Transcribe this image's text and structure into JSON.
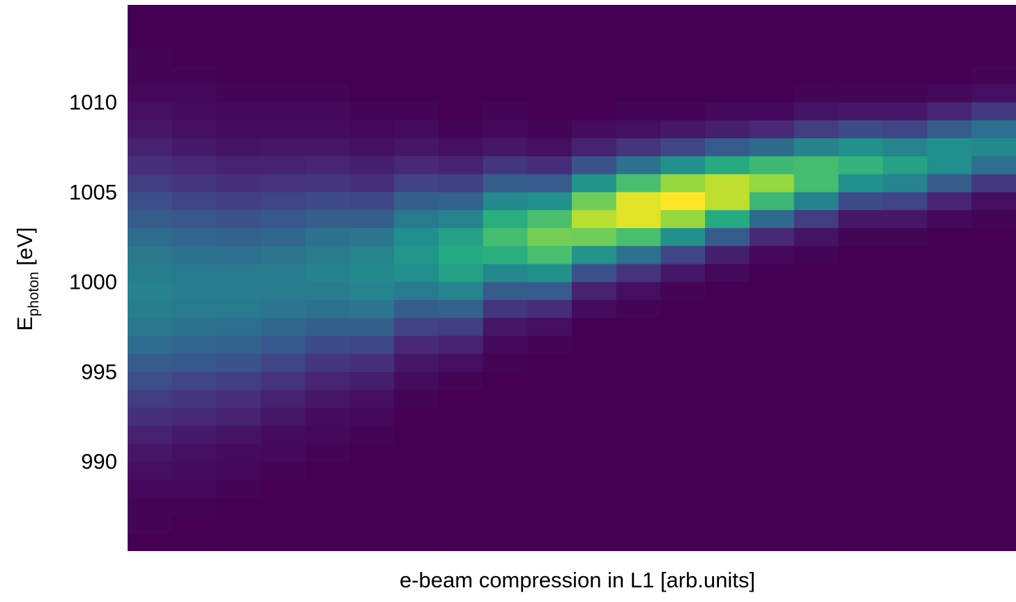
{
  "chart_data": {
    "type": "heatmap",
    "xlabel": "e-beam compression in L1 [arb.units]",
    "ylabel": "E",
    "ylabel_subscript": "photon",
    "ylabel_unit": "[eV]",
    "colormap": "viridis",
    "ylim": [
      985,
      1015.4
    ],
    "yticks": [
      990,
      995,
      1000,
      1005,
      1010
    ],
    "ybins": [
      985,
      986,
      987,
      988,
      989,
      990,
      991,
      992,
      993,
      994,
      995,
      996,
      997,
      998,
      999,
      1000,
      1001,
      1002,
      1003,
      1004,
      1005,
      1006,
      1007,
      1008,
      1009,
      1010,
      1011,
      1012,
      1013,
      1014,
      1015
    ],
    "values": [
      [
        5,
        6,
        6,
        7,
        9,
        11,
        14,
        18,
        22,
        28,
        33,
        39,
        43,
        46,
        47,
        46,
        43,
        39,
        33,
        28,
        22,
        18,
        14,
        11,
        9,
        7,
        6,
        6,
        5,
        5
      ],
      [
        5,
        5,
        6,
        7,
        8,
        9,
        12,
        16,
        20,
        25,
        31,
        36,
        41,
        44,
        45,
        44,
        41,
        36,
        31,
        25,
        20,
        16,
        12,
        9,
        8,
        7,
        6,
        5,
        5,
        5
      ],
      [
        5,
        5,
        5,
        6,
        7,
        8,
        10,
        14,
        18,
        23,
        29,
        35,
        40,
        44,
        45,
        44,
        40,
        35,
        29,
        23,
        18,
        14,
        10,
        8,
        7,
        6,
        5,
        5,
        5,
        5
      ],
      [
        5,
        5,
        5,
        5,
        6,
        7,
        8,
        11,
        14,
        19,
        25,
        31,
        37,
        42,
        45,
        45,
        42,
        37,
        31,
        25,
        19,
        14,
        11,
        8,
        7,
        6,
        5,
        5,
        5,
        5
      ],
      [
        5,
        5,
        5,
        5,
        5,
        6,
        7,
        8,
        11,
        15,
        20,
        27,
        34,
        41,
        45,
        47,
        45,
        41,
        34,
        27,
        20,
        15,
        11,
        8,
        7,
        6,
        5,
        5,
        5,
        5
      ],
      [
        5,
        5,
        5,
        5,
        5,
        5,
        6,
        7,
        9,
        13,
        18,
        26,
        34,
        42,
        48,
        50,
        48,
        42,
        34,
        26,
        18,
        13,
        9,
        7,
        6,
        5,
        5,
        5,
        5,
        5
      ],
      [
        5,
        5,
        5,
        5,
        5,
        5,
        5,
        5,
        6,
        8,
        11,
        16,
        24,
        34,
        44,
        52,
        55,
        52,
        44,
        34,
        24,
        16,
        11,
        8,
        6,
        5,
        5,
        5,
        5,
        5
      ],
      [
        5,
        5,
        5,
        5,
        5,
        5,
        5,
        5,
        5,
        6,
        9,
        14,
        23,
        35,
        48,
        59,
        63,
        59,
        48,
        35,
        23,
        14,
        9,
        6,
        5,
        5,
        5,
        5,
        5,
        5
      ],
      [
        5,
        5,
        5,
        5,
        5,
        5,
        5,
        5,
        5,
        5,
        6,
        7,
        11,
        20,
        33,
        50,
        65,
        71,
        65,
        50,
        33,
        20,
        11,
        7,
        6,
        5,
        5,
        5,
        5,
        5
      ],
      [
        5,
        5,
        5,
        5,
        5,
        5,
        5,
        5,
        5,
        5,
        5,
        6,
        9,
        17,
        32,
        53,
        72,
        80,
        72,
        53,
        32,
        17,
        9,
        6,
        5,
        5,
        5,
        5,
        5,
        5
      ],
      [
        5,
        5,
        5,
        5,
        5,
        5,
        5,
        5,
        5,
        5,
        5,
        5,
        5,
        8,
        14,
        29,
        54,
        79,
        90,
        79,
        54,
        29,
        14,
        8,
        5,
        5,
        5,
        5,
        5,
        5
      ],
      [
        5,
        5,
        5,
        5,
        5,
        5,
        5,
        5,
        5,
        5,
        5,
        5,
        5,
        6,
        9,
        19,
        41,
        72,
        96,
        96,
        72,
        41,
        19,
        9,
        6,
        5,
        5,
        5,
        5,
        5
      ],
      [
        5,
        5,
        5,
        5,
        5,
        5,
        5,
        5,
        5,
        5,
        5,
        5,
        5,
        5,
        6,
        11,
        25,
        53,
        85,
        100,
        85,
        53,
        25,
        11,
        6,
        5,
        5,
        5,
        5,
        5
      ],
      [
        5,
        5,
        5,
        5,
        5,
        5,
        5,
        5,
        5,
        5,
        5,
        5,
        5,
        5,
        5,
        7,
        13,
        32,
        63,
        91,
        91,
        63,
        32,
        13,
        7,
        5,
        5,
        5,
        5,
        5
      ],
      [
        5,
        5,
        5,
        5,
        5,
        5,
        5,
        5,
        5,
        5,
        5,
        5,
        5,
        5,
        5,
        5,
        7,
        16,
        38,
        69,
        85,
        69,
        38,
        16,
        7,
        5,
        5,
        5,
        5,
        5
      ],
      [
        5,
        5,
        5,
        5,
        5,
        5,
        5,
        5,
        5,
        5,
        5,
        5,
        5,
        5,
        5,
        5,
        6,
        10,
        22,
        47,
        71,
        71,
        47,
        22,
        10,
        6,
        5,
        5,
        5,
        5
      ],
      [
        5,
        5,
        5,
        5,
        5,
        5,
        5,
        5,
        5,
        5,
        5,
        5,
        5,
        5,
        5,
        5,
        5,
        6,
        11,
        27,
        53,
        67,
        53,
        27,
        11,
        6,
        5,
        5,
        5,
        5
      ],
      [
        5,
        5,
        5,
        5,
        5,
        5,
        5,
        5,
        5,
        5,
        5,
        5,
        5,
        5,
        5,
        5,
        5,
        6,
        11,
        25,
        48,
        60,
        48,
        25,
        11,
        6,
        5,
        5,
        5,
        5
      ],
      [
        5,
        5,
        5,
        5,
        5,
        5,
        5,
        5,
        5,
        5,
        5,
        5,
        5,
        5,
        5,
        5,
        5,
        5,
        7,
        15,
        33,
        52,
        52,
        33,
        15,
        7,
        5,
        5,
        5,
        5
      ],
      [
        5,
        5,
        5,
        5,
        5,
        5,
        5,
        5,
        5,
        5,
        5,
        5,
        5,
        5,
        5,
        5,
        5,
        5,
        6,
        9,
        21,
        40,
        50,
        40,
        21,
        9,
        6,
        5,
        5,
        5
      ]
    ]
  }
}
